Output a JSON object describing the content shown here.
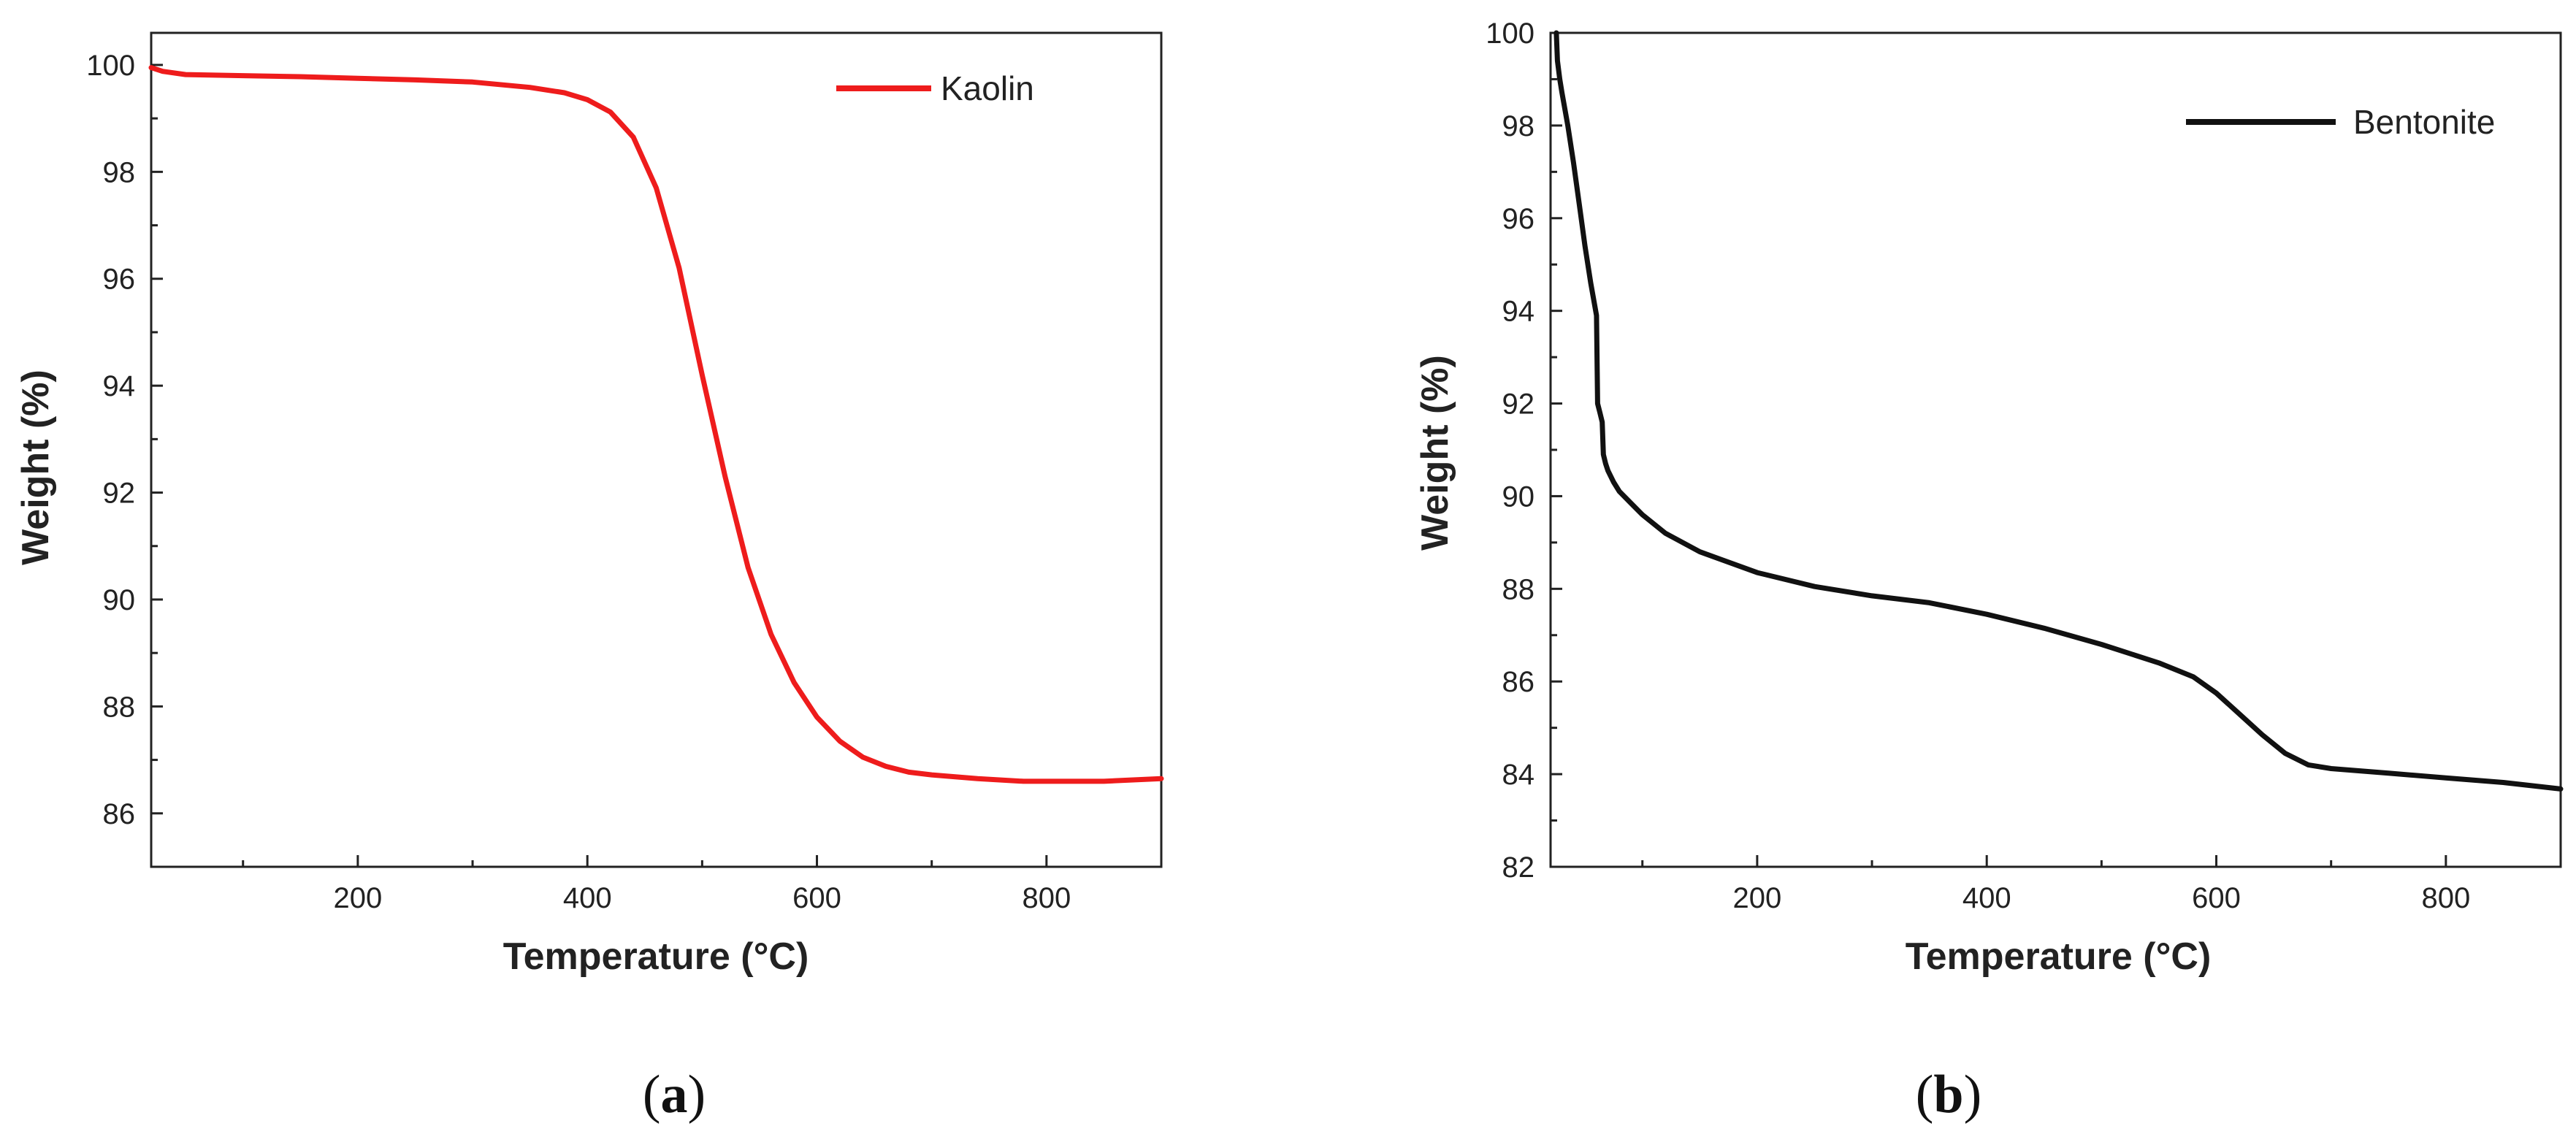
{
  "chart_data": [
    {
      "type": "line",
      "panel_label": "a",
      "xlabel": "Temperature (°C)",
      "ylabel": "Weight (%)",
      "xlim": [
        20,
        900
      ],
      "ylim": [
        85,
        100.6
      ],
      "xticks": [
        200,
        400,
        600,
        800
      ],
      "yticks": [
        86,
        88,
        90,
        92,
        94,
        96,
        98,
        100
      ],
      "legend_position": "top-right",
      "series": [
        {
          "name": "Kaolin",
          "color": "#ee1c1c",
          "x": [
            20,
            30,
            50,
            100,
            150,
            200,
            250,
            300,
            350,
            380,
            400,
            420,
            440,
            460,
            480,
            500,
            520,
            540,
            560,
            580,
            600,
            620,
            640,
            660,
            680,
            700,
            740,
            780,
            850,
            900
          ],
          "y": [
            99.95,
            99.88,
            99.82,
            99.8,
            99.78,
            99.75,
            99.72,
            99.68,
            99.58,
            99.48,
            99.35,
            99.12,
            98.65,
            97.7,
            96.2,
            94.2,
            92.3,
            90.6,
            89.35,
            88.45,
            87.8,
            87.35,
            87.05,
            86.88,
            86.77,
            86.72,
            86.65,
            86.6,
            86.6,
            86.65
          ]
        }
      ]
    },
    {
      "type": "line",
      "panel_label": "b",
      "xlabel": "Temperature (°C)",
      "ylabel": "Weight (%)",
      "xlim": [
        20,
        900
      ],
      "ylim": [
        82,
        100
      ],
      "xticks": [
        200,
        400,
        600,
        800
      ],
      "yticks": [
        82,
        84,
        86,
        88,
        90,
        92,
        94,
        96,
        98,
        100
      ],
      "legend_position": "top-right",
      "series": [
        {
          "name": "Bentonite",
          "color": "#111111",
          "x": [
            25,
            26,
            28,
            30,
            35,
            40,
            45,
            50,
            55,
            60,
            61,
            63,
            65,
            66,
            68,
            70,
            75,
            80,
            90,
            100,
            120,
            150,
            200,
            250,
            300,
            350,
            400,
            450,
            500,
            550,
            580,
            600,
            620,
            640,
            660,
            680,
            700,
            750,
            800,
            850,
            900
          ],
          "y": [
            100,
            99.4,
            99.0,
            98.7,
            98.0,
            97.2,
            96.3,
            95.4,
            94.6,
            93.9,
            92.0,
            91.8,
            91.6,
            90.9,
            90.7,
            90.55,
            90.3,
            90.1,
            89.85,
            89.6,
            89.2,
            88.8,
            88.35,
            88.05,
            87.85,
            87.7,
            87.45,
            87.15,
            86.8,
            86.4,
            86.1,
            85.75,
            85.3,
            84.85,
            84.45,
            84.2,
            84.12,
            84.02,
            83.92,
            83.82,
            83.68
          ]
        }
      ]
    }
  ]
}
